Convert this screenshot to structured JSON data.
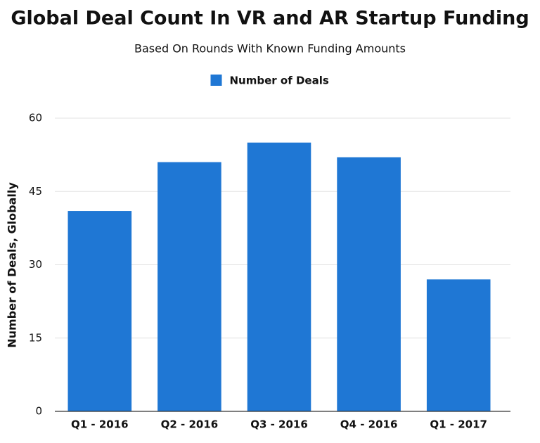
{
  "chart_data": {
    "type": "bar",
    "title": "Global Deal Count In VR and AR Startup Funding",
    "subtitle": "Based On Rounds With Known Funding Amounts",
    "y_label": "Number of Deals, Globally",
    "categories": [
      "Q1 - 2016",
      "Q2 - 2016",
      "Q3 - 2016",
      "Q4 - 2016",
      "Q1 - 2017"
    ],
    "series": [
      {
        "name": "Number of Deals",
        "color": "#1f77d4",
        "values": [
          41,
          51,
          55,
          52,
          27
        ]
      }
    ],
    "ylim": [
      0,
      60
    ],
    "yticks": [
      0,
      15,
      30,
      45,
      60
    ],
    "grid": true,
    "legend": "top"
  }
}
